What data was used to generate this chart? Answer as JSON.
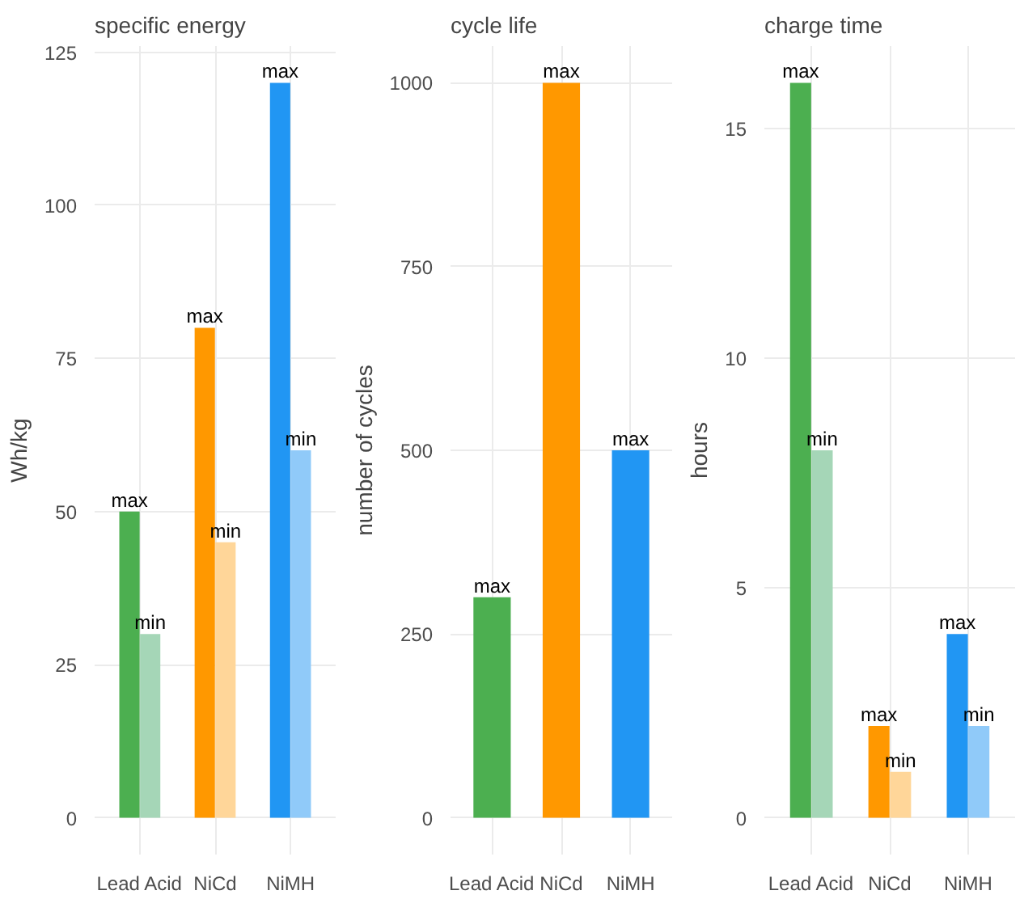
{
  "chart_data": [
    {
      "type": "bar",
      "title": "specific energy",
      "ylabel": "Wh/kg",
      "categories": [
        "Lead Acid",
        "NiCd",
        "NiMH"
      ],
      "ylim": [
        -6,
        126
      ],
      "yticks": [
        0,
        25,
        50,
        75,
        100,
        125
      ],
      "grid": true,
      "series": [
        {
          "name": "max",
          "values": [
            50,
            80,
            120
          ],
          "colors": [
            "#4caf50",
            "#ff9800",
            "#2196f3"
          ]
        },
        {
          "name": "min",
          "values": [
            30,
            45,
            60
          ],
          "colors": [
            "#a5d6b7",
            "#ffd699",
            "#90caf9"
          ]
        }
      ]
    },
    {
      "type": "bar",
      "title": "cycle life",
      "ylabel": "number of cycles",
      "categories": [
        "Lead Acid",
        "NiCd",
        "NiMH"
      ],
      "ylim": [
        -50,
        1050
      ],
      "yticks": [
        0,
        250,
        500,
        750,
        1000
      ],
      "grid": true,
      "series": [
        {
          "name": "max",
          "values": [
            300,
            1000,
            500
          ],
          "colors": [
            "#4caf50",
            "#ff9800",
            "#2196f3"
          ]
        }
      ]
    },
    {
      "type": "bar",
      "title": "charge time",
      "ylabel": "hours",
      "categories": [
        "Lead Acid",
        "NiCd",
        "NiMH"
      ],
      "ylim": [
        -0.8,
        16.8
      ],
      "yticks": [
        0,
        5,
        10,
        15
      ],
      "grid": true,
      "series": [
        {
          "name": "max",
          "values": [
            16,
            2,
            4
          ],
          "colors": [
            "#4caf50",
            "#ff9800",
            "#2196f3"
          ]
        },
        {
          "name": "min",
          "values": [
            8,
            1,
            2
          ],
          "colors": [
            "#a5d6b7",
            "#ffd699",
            "#90caf9"
          ]
        }
      ]
    }
  ]
}
